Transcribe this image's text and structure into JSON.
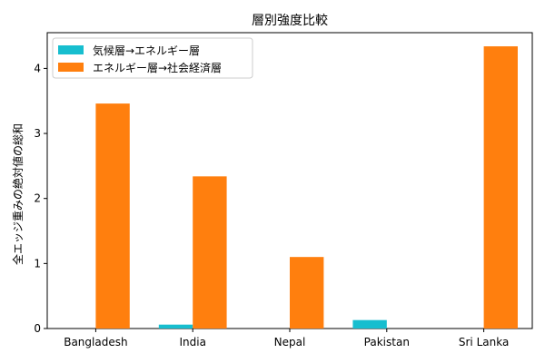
{
  "chart_data": {
    "type": "bar",
    "title": "層別強度比較",
    "xlabel": "",
    "ylabel": "全エッジ重みの絶対値の総和",
    "categories": [
      "Bangladesh",
      "India",
      "Nepal",
      "Pakistan",
      "Sri Lanka"
    ],
    "series": [
      {
        "name": "気候層→エネルギー層",
        "color": "#17becf",
        "values": [
          0.0,
          0.06,
          0.0,
          0.13,
          0.0
        ]
      },
      {
        "name": "エネルギー層→社会経済層",
        "color": "#ff7f0e",
        "values": [
          3.46,
          2.34,
          1.1,
          0.0,
          4.34
        ]
      }
    ],
    "ylim": [
      0,
      4.55
    ],
    "yticks": [
      0,
      1,
      2,
      3,
      4
    ],
    "grid": false,
    "legend_position": "top-left"
  }
}
